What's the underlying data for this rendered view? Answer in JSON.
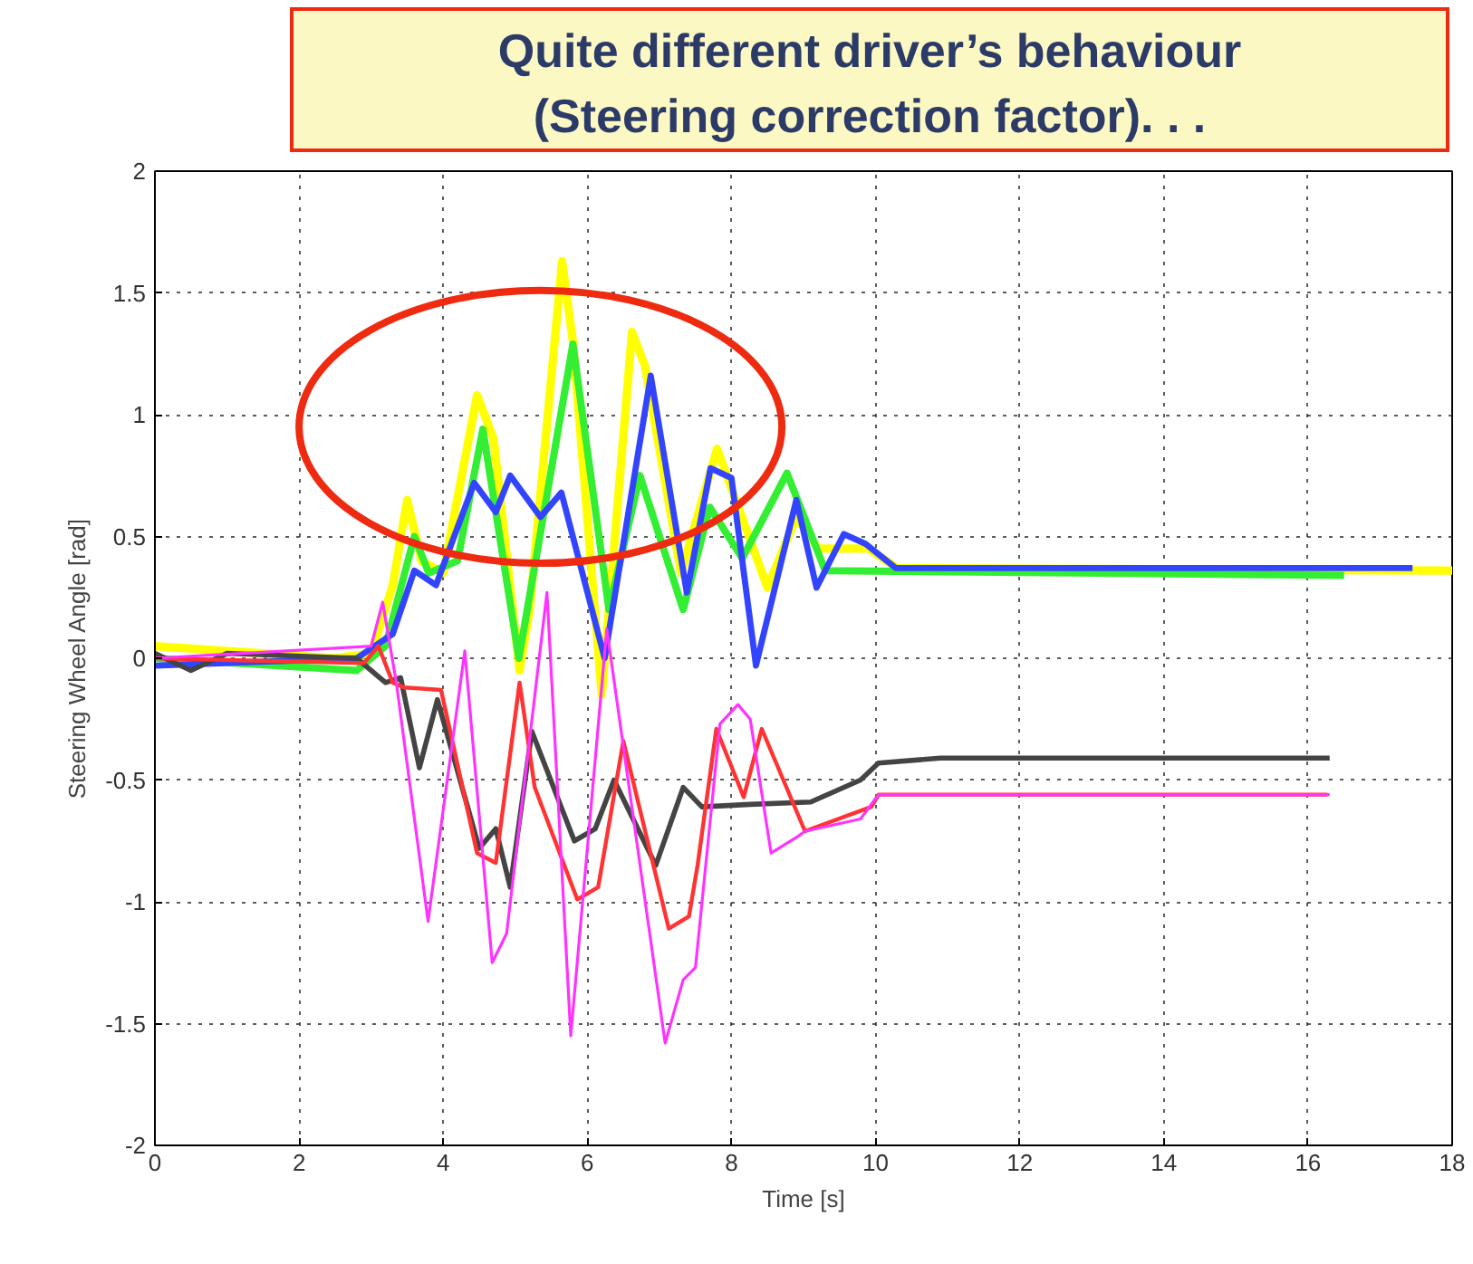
{
  "chart_data": {
    "type": "line",
    "xlabel": "Time [s]",
    "ylabel": "Steering Wheel Angle [rad]",
    "xlim": [
      0,
      18
    ],
    "ylim": [
      -2,
      2
    ],
    "xticks": [
      0,
      2,
      4,
      6,
      8,
      10,
      12,
      14,
      16,
      18
    ],
    "yticks": [
      -2,
      -1.5,
      -1,
      -0.5,
      0,
      0.5,
      1,
      1.5,
      2
    ],
    "grid": true,
    "annotations": [
      "Quite different driver’s behaviour (Steering correction factor). . ."
    ],
    "series": [
      {
        "color": "#ffff00",
        "x": [
          0,
          2.5,
          3.0,
          3.3,
          3.5,
          3.7,
          4.0,
          4.47,
          4.7,
          5.06,
          5.2,
          5.65,
          5.8,
          6.2,
          6.62,
          6.8,
          7.3,
          7.8,
          8.5,
          8.9,
          9.2,
          9.9,
          10.3,
          18
        ],
        "values": [
          0.05,
          0.0,
          0.02,
          0.3,
          0.65,
          0.4,
          0.35,
          1.08,
          0.9,
          -0.05,
          0.2,
          1.63,
          1.3,
          -0.15,
          1.34,
          1.2,
          0.35,
          0.86,
          0.29,
          0.58,
          0.45,
          0.45,
          0.37,
          0.36
        ]
      },
      {
        "color": "#33ee33",
        "x": [
          0,
          2.8,
          3.2,
          3.6,
          3.8,
          4.2,
          4.55,
          5.05,
          5.8,
          6.3,
          6.73,
          7.33,
          7.7,
          8.15,
          8.77,
          9.3,
          16.5
        ],
        "values": [
          0.0,
          -0.05,
          0.05,
          0.5,
          0.35,
          0.4,
          0.94,
          0.0,
          1.29,
          0.2,
          0.75,
          0.2,
          0.62,
          0.41,
          0.76,
          0.36,
          0.34
        ]
      },
      {
        "color": "#3344ff",
        "x": [
          0,
          2.8,
          3.3,
          3.6,
          3.9,
          4.43,
          4.73,
          4.93,
          5.35,
          5.64,
          6.24,
          6.88,
          7.38,
          7.71,
          8.0,
          8.34,
          8.9,
          9.18,
          9.56,
          9.86,
          10.28,
          17.45
        ],
        "values": [
          -0.03,
          0.0,
          0.1,
          0.36,
          0.3,
          0.72,
          0.6,
          0.75,
          0.58,
          0.68,
          0.0,
          1.16,
          0.27,
          0.78,
          0.74,
          -0.03,
          0.65,
          0.29,
          0.51,
          0.47,
          0.37,
          0.37
        ]
      },
      {
        "color": "#444444",
        "x": [
          0,
          0.5,
          1.0,
          2.8,
          3.2,
          3.41,
          3.67,
          3.92,
          4.5,
          4.73,
          4.93,
          5.23,
          5.82,
          6.11,
          6.37,
          6.95,
          7.33,
          7.59,
          8.26,
          9.1,
          9.79,
          10.04,
          10.9,
          16.3
        ],
        "values": [
          0.02,
          -0.05,
          0.02,
          0.0,
          -0.1,
          -0.08,
          -0.45,
          -0.17,
          -0.78,
          -0.7,
          -0.94,
          -0.3,
          -0.75,
          -0.7,
          -0.5,
          -0.85,
          -0.53,
          -0.61,
          -0.6,
          -0.59,
          -0.5,
          -0.43,
          -0.41,
          -0.41
        ]
      },
      {
        "color": "#ff3333",
        "x": [
          0,
          2.9,
          3.1,
          3.3,
          3.46,
          3.97,
          4.47,
          4.73,
          5.06,
          5.27,
          5.86,
          6.15,
          6.5,
          7.13,
          7.41,
          7.53,
          7.79,
          8.17,
          8.42,
          9.02,
          9.94,
          10.04,
          16.27
        ],
        "values": [
          0.0,
          -0.02,
          0.05,
          -0.1,
          -0.12,
          -0.13,
          -0.8,
          -0.84,
          -0.1,
          -0.53,
          -0.99,
          -0.94,
          -0.34,
          -1.11,
          -1.06,
          -0.85,
          -0.29,
          -0.57,
          -0.29,
          -0.71,
          -0.61,
          -0.56,
          -0.56
        ]
      },
      {
        "color": "#ff33ff",
        "x": [
          0,
          3.0,
          3.16,
          3.35,
          3.79,
          4.3,
          4.68,
          4.88,
          5.44,
          5.77,
          6.27,
          7.08,
          7.33,
          7.5,
          7.84,
          8.09,
          8.26,
          8.55,
          8.93,
          9.02,
          9.79,
          10.04,
          16.3
        ],
        "values": [
          0.0,
          0.05,
          0.23,
          -0.1,
          -1.08,
          0.03,
          -1.25,
          -1.13,
          0.27,
          -1.55,
          0.12,
          -1.58,
          -1.32,
          -1.27,
          -0.27,
          -0.19,
          -0.25,
          -0.8,
          -0.73,
          -0.71,
          -0.66,
          -0.56,
          -0.56
        ]
      }
    ]
  }
}
